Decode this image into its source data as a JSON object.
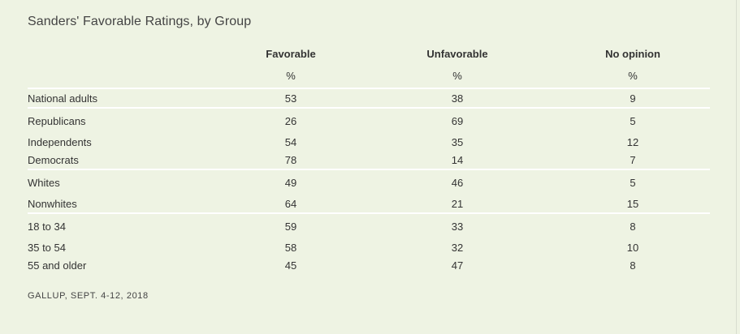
{
  "title": "Sanders' Favorable Ratings, by Group",
  "columns": [
    "Favorable",
    "Unfavorable",
    "No opinion"
  ],
  "units": [
    "%",
    "%",
    "%"
  ],
  "groups": [
    [
      {
        "label": "National adults",
        "values": [
          "53",
          "38",
          "9"
        ]
      }
    ],
    [
      {
        "label": "Republicans",
        "values": [
          "26",
          "69",
          "5"
        ]
      },
      {
        "label": "Independents",
        "values": [
          "54",
          "35",
          "12"
        ]
      },
      {
        "label": "Democrats",
        "values": [
          "78",
          "14",
          "7"
        ]
      }
    ],
    [
      {
        "label": "Whites",
        "values": [
          "49",
          "46",
          "5"
        ]
      },
      {
        "label": "Nonwhites",
        "values": [
          "64",
          "21",
          "15"
        ]
      }
    ],
    [
      {
        "label": "18 to 34",
        "values": [
          "59",
          "33",
          "8"
        ]
      },
      {
        "label": "35 to 54",
        "values": [
          "58",
          "32",
          "10"
        ]
      },
      {
        "label": "55 and older",
        "values": [
          "45",
          "47",
          "8"
        ]
      }
    ]
  ],
  "source": "GALLUP, SEPT. 4-12, 2018",
  "colors": {
    "background": "#eef3e3",
    "divider": "#ffffff",
    "text": "#333333"
  }
}
